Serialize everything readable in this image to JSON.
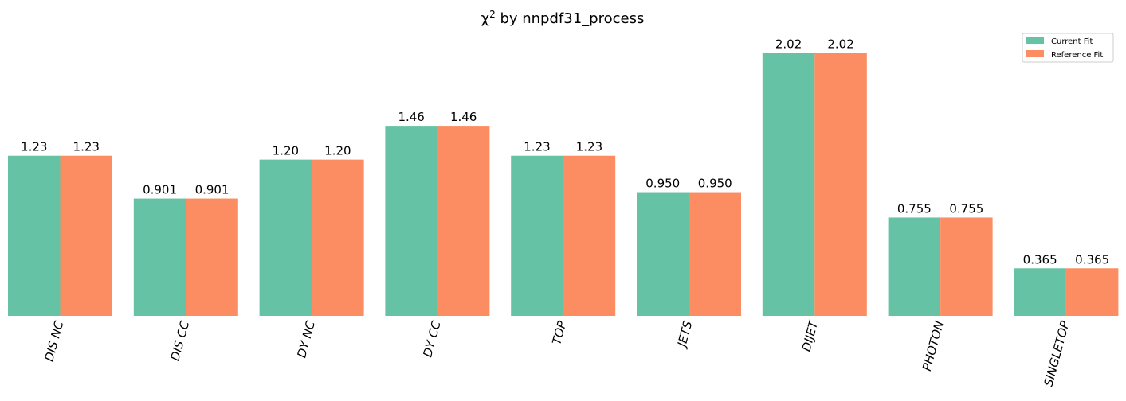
{
  "chart_data": {
    "type": "bar",
    "title_main": "χ",
    "title_sup": "2",
    "title_rest": " by nnpdf31_process",
    "categories": [
      "DIS NC",
      "DIS CC",
      "DY NC",
      "DY CC",
      "TOP",
      "JETS",
      "DIJET",
      "PHOTON",
      "SINGLETOP"
    ],
    "series": [
      {
        "name": "Current Fit",
        "color": "#66c2a5",
        "values": [
          1.23,
          0.901,
          1.2,
          1.46,
          1.23,
          0.95,
          2.02,
          0.755,
          0.365
        ],
        "labels": [
          "1.23",
          "0.901",
          "1.20",
          "1.46",
          "1.23",
          "0.950",
          "2.02",
          "0.755",
          "0.365"
        ]
      },
      {
        "name": "Reference Fit",
        "color": "#fc8d62",
        "values": [
          1.23,
          0.901,
          1.2,
          1.46,
          1.23,
          0.95,
          2.02,
          0.755,
          0.365
        ],
        "labels": [
          "1.23",
          "0.901",
          "1.20",
          "1.46",
          "1.23",
          "0.950",
          "2.02",
          "0.755",
          "0.365"
        ]
      }
    ],
    "ylim": [
      0,
      2.09
    ],
    "grid": false,
    "legend_position": "top-right",
    "xlabel": "",
    "ylabel": ""
  }
}
